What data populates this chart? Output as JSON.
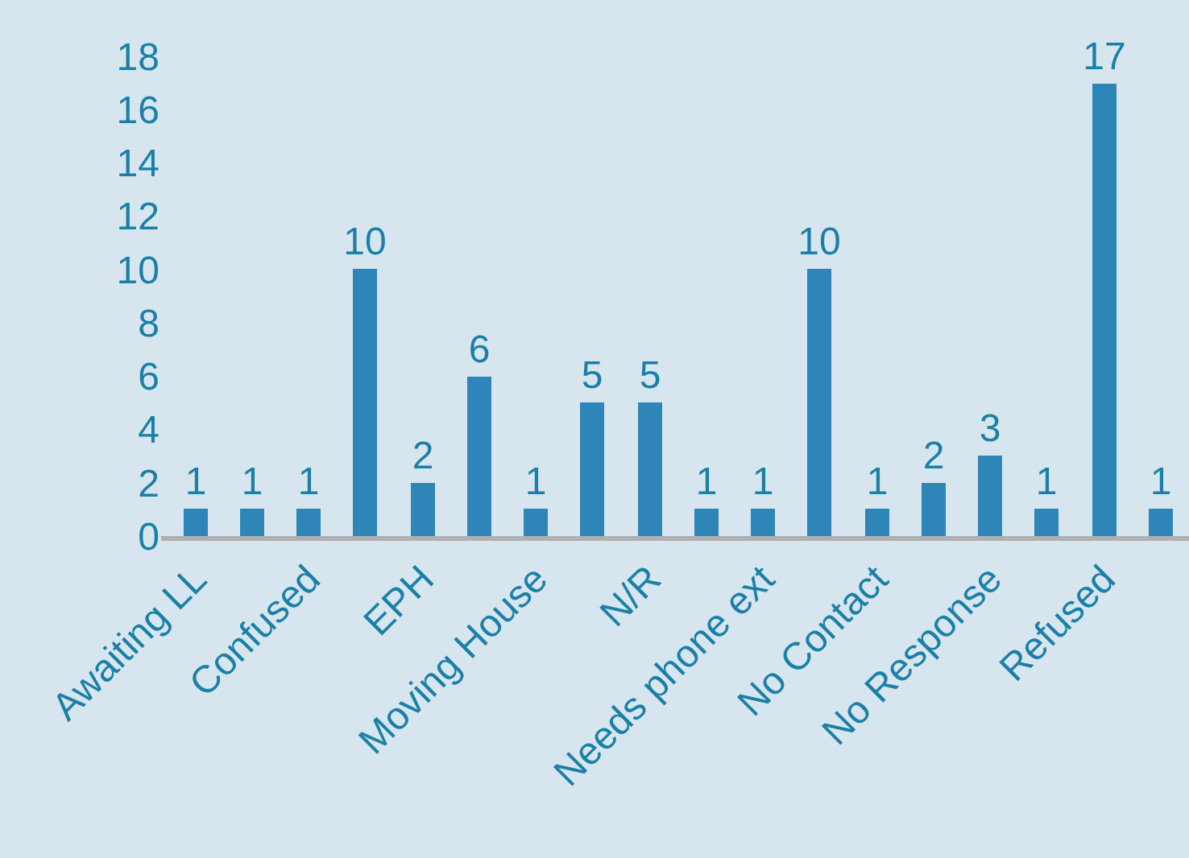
{
  "chart_data": {
    "type": "bar",
    "categories": [
      "Awaiting LL",
      null,
      "Confused",
      null,
      "EPH",
      null,
      "Moving House",
      null,
      "N/R",
      null,
      "Needs phone ext",
      null,
      "No Contact",
      null,
      "No Response",
      null,
      "Refused",
      null
    ],
    "values": [
      1,
      1,
      1,
      10,
      2,
      6,
      1,
      5,
      5,
      1,
      1,
      10,
      1,
      2,
      3,
      1,
      17,
      1
    ],
    "color": "#2e86b8",
    "ylim": [
      0,
      18
    ],
    "yticks": [
      0,
      2,
      4,
      6,
      8,
      10,
      12,
      14,
      16,
      18
    ],
    "grid": false,
    "legend": false,
    "data_labels": true
  }
}
